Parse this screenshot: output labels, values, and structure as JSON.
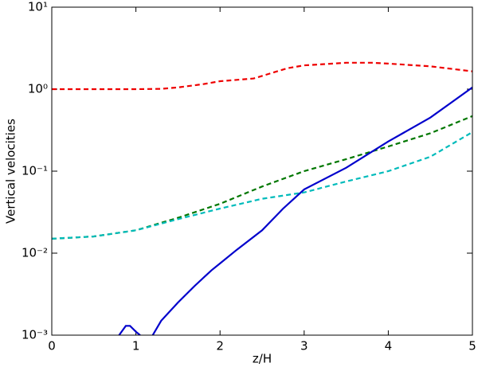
{
  "chart_data": {
    "type": "line",
    "xlabel": "z/H",
    "ylabel": "Vertical velocities",
    "xlim": [
      0,
      5
    ],
    "xticks": [
      0,
      1,
      2,
      3,
      4,
      5
    ],
    "ylim": [
      0.001,
      10
    ],
    "log_y": true,
    "yticks": [
      {
        "value": 0.001,
        "label": "10⁻³"
      },
      {
        "value": 0.01,
        "label": "10⁻²"
      },
      {
        "value": 0.1,
        "label": "10⁻¹"
      },
      {
        "value": 1,
        "label": "10⁰"
      },
      {
        "value": 10,
        "label": "10¹"
      }
    ],
    "series": [
      {
        "color": "#ee0000",
        "dashed": true,
        "x": [
          0,
          0.5,
          1,
          1.3,
          1.5,
          1.8,
          2,
          2.4,
          2.8,
          3,
          3.5,
          3.8,
          4,
          4.5,
          5
        ],
        "values": [
          1.0,
          1.0,
          1.0,
          1.01,
          1.05,
          1.15,
          1.25,
          1.35,
          1.8,
          1.95,
          2.1,
          2.1,
          2.05,
          1.9,
          1.65
        ]
      },
      {
        "color": "#007700",
        "dashed": true,
        "x": [
          0,
          0.5,
          1,
          1.5,
          2,
          2.5,
          3,
          3.5,
          4,
          4.5,
          5
        ],
        "values": [
          0.015,
          0.016,
          0.019,
          0.027,
          0.04,
          0.065,
          0.1,
          0.14,
          0.2,
          0.29,
          0.47
        ]
      },
      {
        "color": "#00bbbb",
        "dashed": true,
        "x": [
          0,
          0.5,
          1,
          1.5,
          2,
          2.5,
          3,
          3.5,
          4,
          4.5,
          5
        ],
        "values": [
          0.015,
          0.016,
          0.019,
          0.026,
          0.035,
          0.046,
          0.055,
          0.075,
          0.1,
          0.15,
          0.3
        ]
      },
      {
        "color": "#0000cc",
        "dashed": false,
        "x": [
          0.8,
          0.88,
          0.93,
          1.0,
          1.05,
          1.12,
          1.2,
          1.3,
          1.5,
          1.7,
          1.9,
          2,
          2.2,
          2.5,
          2.75,
          3,
          3.5,
          4,
          4.5,
          5
        ],
        "values": [
          0.001,
          0.0013,
          0.0013,
          0.0011,
          0.001,
          null,
          0.001,
          0.0015,
          0.0025,
          0.004,
          0.0062,
          0.0075,
          0.011,
          0.019,
          0.035,
          0.06,
          0.11,
          0.23,
          0.45,
          1.05
        ]
      }
    ]
  }
}
